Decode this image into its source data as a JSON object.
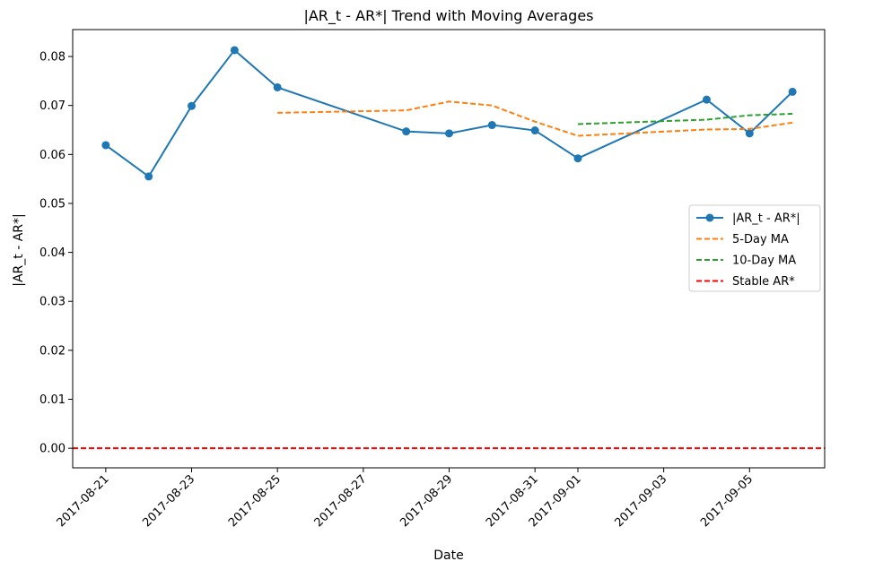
{
  "chart_data": {
    "type": "line",
    "title": "|AR_t - AR*| Trend with Moving Averages",
    "xlabel": "Date",
    "ylabel": "|AR_t - AR*|",
    "xlim": [
      "2017-08-20T05:30",
      "2017-09-06T18:00"
    ],
    "ylim": [
      -0.004,
      0.0855
    ],
    "grid": false,
    "legend_position": "center-right",
    "x_ticks": [
      "2017-08-21",
      "2017-08-23",
      "2017-08-25",
      "2017-08-27",
      "2017-08-29",
      "2017-08-31",
      "2017-09-01",
      "2017-09-03",
      "2017-09-05"
    ],
    "y_ticks": [
      0.0,
      0.01,
      0.02,
      0.03,
      0.04,
      0.05,
      0.06,
      0.07,
      0.08
    ],
    "y_tick_labels": [
      "0.00",
      "0.01",
      "0.02",
      "0.03",
      "0.04",
      "0.05",
      "0.06",
      "0.07",
      "0.08"
    ],
    "series": [
      {
        "name": "|AR_t - AR*|",
        "color": "#1f77b4",
        "style": "solid",
        "marker": "circle",
        "points": [
          [
            "2017-08-21",
            0.0619
          ],
          [
            "2017-08-22",
            0.0555
          ],
          [
            "2017-08-23",
            0.0699
          ],
          [
            "2017-08-24",
            0.0813
          ],
          [
            "2017-08-25",
            0.0737
          ],
          [
            "2017-08-28",
            0.0647
          ],
          [
            "2017-08-29",
            0.0643
          ],
          [
            "2017-08-30",
            0.066
          ],
          [
            "2017-08-31",
            0.0649
          ],
          [
            "2017-09-01",
            0.0592
          ],
          [
            "2017-09-04",
            0.0712
          ],
          [
            "2017-09-05",
            0.0643
          ],
          [
            "2017-09-06",
            0.0728
          ]
        ]
      },
      {
        "name": "5-Day MA",
        "color": "#ff7f0e",
        "style": "dashed",
        "marker": "none",
        "points": [
          [
            "2017-08-25",
            0.0685
          ],
          [
            "2017-08-28",
            0.069
          ],
          [
            "2017-08-29",
            0.0708
          ],
          [
            "2017-08-30",
            0.07
          ],
          [
            "2017-08-31",
            0.0667
          ],
          [
            "2017-09-01",
            0.0638
          ],
          [
            "2017-09-04",
            0.0651
          ],
          [
            "2017-09-05",
            0.0652
          ],
          [
            "2017-09-06",
            0.0665
          ]
        ]
      },
      {
        "name": "10-Day MA",
        "color": "#2ca02c",
        "style": "dashed",
        "marker": "none",
        "points": [
          [
            "2017-09-01",
            0.0662
          ],
          [
            "2017-09-04",
            0.0671
          ],
          [
            "2017-09-05",
            0.068
          ],
          [
            "2017-09-06",
            0.0683
          ]
        ]
      },
      {
        "name": "Stable AR*",
        "color": "#ff0000",
        "style": "dashed",
        "marker": "none",
        "hline": 0.0
      }
    ]
  }
}
